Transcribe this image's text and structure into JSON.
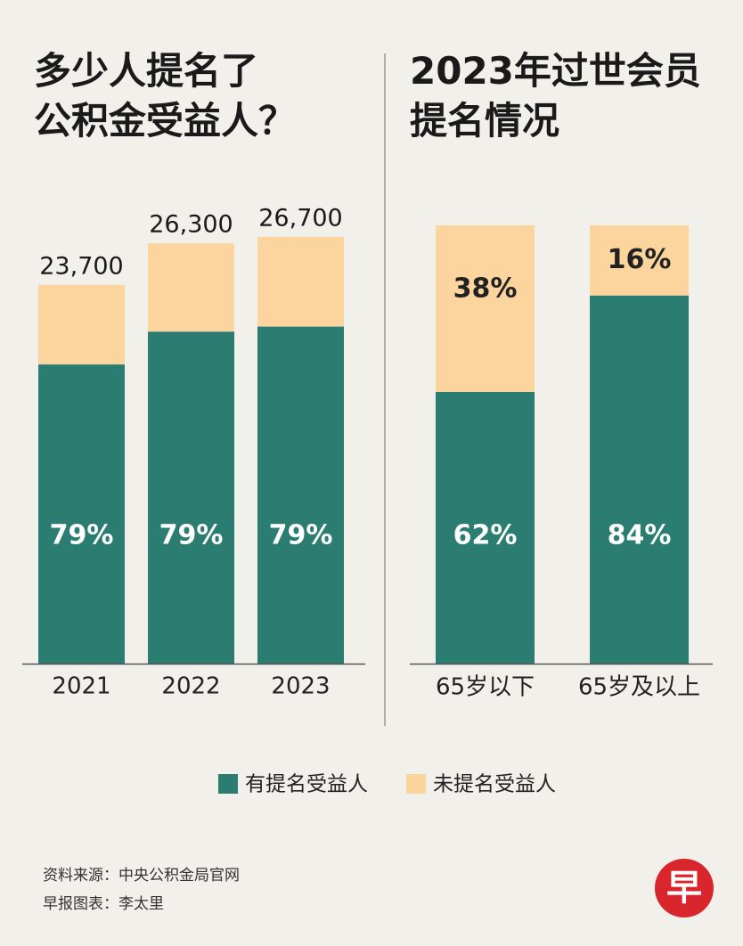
{
  "chart_data": [
    {
      "type": "bar",
      "title": "多少人提名了\n公积金受益人？",
      "categories": [
        "2021",
        "2022",
        "2023"
      ],
      "values": [
        23700,
        26300,
        26700
      ],
      "value_labels": [
        "23,700",
        "26,300",
        "26,700"
      ],
      "series": [
        {
          "name": "有提名受益人",
          "color": "#2b7d72",
          "values": [
            79,
            79,
            79
          ],
          "value_labels": [
            "79%",
            "79%",
            "79%"
          ]
        },
        {
          "name": "未提名受益人",
          "color": "#fcd49e",
          "values": [
            21,
            21,
            21
          ]
        }
      ]
    },
    {
      "type": "bar",
      "title": "2023年过世会员\n提名情况",
      "categories": [
        "65岁以下",
        "65岁及以上"
      ],
      "series": [
        {
          "color": "#2b7d72",
          "values": [
            62,
            84
          ],
          "value_labels": [
            "62%",
            "84%"
          ]
        },
        {
          "color": "#fcd49e",
          "values": [
            38,
            16
          ],
          "value_labels": [
            "38%",
            "16%"
          ]
        }
      ]
    }
  ],
  "footer": {
    "source": "资料来源：中央公积金局官网",
    "credit": "早报图表：李太里"
  },
  "logo": "早"
}
